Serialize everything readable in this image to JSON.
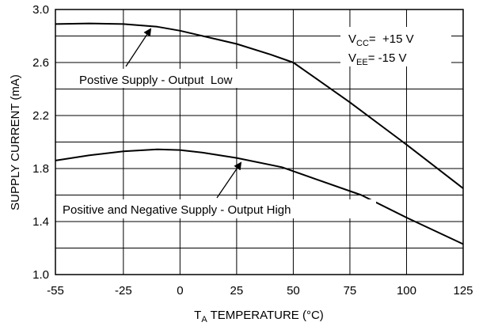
{
  "chart_data": {
    "type": "line",
    "xlabel": {
      "prefix": "T",
      "sub": "A",
      "rest": " TEMPERATURE (°C)"
    },
    "ylabel": "SUPPLY CURRENT (mA)",
    "xlim": [
      -55,
      125
    ],
    "ylim": [
      1.0,
      3.0
    ],
    "xticks": [
      "-55",
      "-25",
      "0",
      "25",
      "50",
      "75",
      "100",
      "125"
    ],
    "xtick_values": [
      -55,
      -25,
      0,
      25,
      50,
      75,
      100,
      125
    ],
    "yticks": [
      "1.0",
      "1.4",
      "1.8",
      "2.2",
      "2.6",
      "3.0"
    ],
    "ytick_values": [
      1.0,
      1.4,
      1.8,
      2.2,
      2.6,
      3.0
    ],
    "grid": true,
    "series": [
      {
        "name": "Postive Supply - Output  Low",
        "x": [
          -55,
          -40,
          -25,
          -10,
          0,
          10,
          25,
          40,
          50,
          60,
          75,
          100,
          125
        ],
        "y": [
          2.89,
          2.895,
          2.89,
          2.87,
          2.84,
          2.8,
          2.74,
          2.66,
          2.6,
          2.48,
          2.3,
          1.98,
          1.65
        ]
      },
      {
        "name": "Positive and Negative Supply - Output High",
        "x": [
          -55,
          -40,
          -25,
          -10,
          0,
          10,
          25,
          45,
          60,
          80,
          100,
          125
        ],
        "y": [
          1.86,
          1.9,
          1.93,
          1.945,
          1.94,
          1.92,
          1.88,
          1.81,
          1.72,
          1.6,
          1.43,
          1.23
        ]
      }
    ],
    "annotations": {
      "vcc": {
        "name": "V",
        "sub": "CC",
        "value": "=  +15 V"
      },
      "vee": {
        "name": "V",
        "sub": "EE",
        "value": "= -15 V"
      }
    }
  }
}
